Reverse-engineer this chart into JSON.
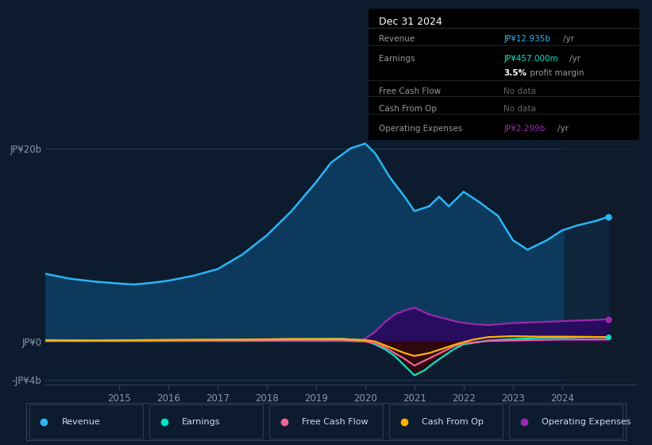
{
  "background_color": "#0d1b2e",
  "plot_bg_color": "#0d1b2e",
  "ylabel_top": "JP¥20b",
  "ylabel_zero": "JP¥0",
  "ylabel_bottom": "-JP¥4b",
  "ylim": [
    -4500000000.0,
    22000000000.0
  ],
  "xlim": [
    2013.5,
    2025.5
  ],
  "xticks": [
    2015,
    2016,
    2017,
    2018,
    2019,
    2020,
    2021,
    2022,
    2023,
    2024
  ],
  "grid_color": "#1e3a5a",
  "revenue_color": "#29b6f6",
  "revenue_fill": "#0d3a5c",
  "earnings_color": "#00e5c9",
  "fcf_color": "#f06292",
  "cashfromop_color": "#ffb300",
  "opex_color": "#9c27b0",
  "opex_fill": "#2a0a5e",
  "revenue_x": [
    2013.5,
    2014.0,
    2014.5,
    2015.0,
    2015.3,
    2015.7,
    2016.0,
    2016.5,
    2017.0,
    2017.5,
    2018.0,
    2018.5,
    2019.0,
    2019.3,
    2019.7,
    2020.0,
    2020.2,
    2020.5,
    2020.8,
    2021.0,
    2021.3,
    2021.5,
    2021.7,
    2022.0,
    2022.3,
    2022.7,
    2023.0,
    2023.3,
    2023.7,
    2024.0,
    2024.3,
    2024.7,
    2024.95
  ],
  "revenue_y": [
    7000000000.0,
    6500000000.0,
    6200000000.0,
    6000000000.0,
    5900000000.0,
    6100000000.0,
    6300000000.0,
    6800000000.0,
    7500000000.0,
    9000000000.0,
    11000000000.0,
    13500000000.0,
    16500000000.0,
    18500000000.0,
    20000000000.0,
    20500000000.0,
    19500000000.0,
    17000000000.0,
    15000000000.0,
    13500000000.0,
    14000000000.0,
    15000000000.0,
    14000000000.0,
    15500000000.0,
    14500000000.0,
    13000000000.0,
    10500000000.0,
    9500000000.0,
    10500000000.0,
    11500000000.0,
    12000000000.0,
    12500000000.0,
    12935000000.0
  ],
  "earnings_x": [
    2013.5,
    2014.5,
    2015.5,
    2016.5,
    2017.5,
    2018.5,
    2019.5,
    2020.0,
    2020.2,
    2020.4,
    2020.6,
    2020.8,
    2021.0,
    2021.2,
    2021.4,
    2021.6,
    2021.8,
    2022.0,
    2022.5,
    2023.0,
    2023.5,
    2024.0,
    2024.5,
    2024.95
  ],
  "earnings_y": [
    150000000.0,
    100000000.0,
    120000000.0,
    150000000.0,
    180000000.0,
    250000000.0,
    280000000.0,
    100000000.0,
    -300000000.0,
    -800000000.0,
    -1500000000.0,
    -2500000000.0,
    -3500000000.0,
    -3000000000.0,
    -2200000000.0,
    -1500000000.0,
    -800000000.0,
    -300000000.0,
    100000000.0,
    250000000.0,
    350000000.0,
    400000000.0,
    450000000.0,
    457000000.0
  ],
  "fcf_x": [
    2013.5,
    2014.5,
    2015.5,
    2016.5,
    2017.5,
    2018.5,
    2019.5,
    2020.0,
    2020.2,
    2020.4,
    2020.6,
    2020.8,
    2021.0,
    2021.2,
    2021.4,
    2021.6,
    2021.8,
    2022.0,
    2022.5,
    2023.0,
    2023.5,
    2024.0,
    2024.5,
    2024.95
  ],
  "fcf_y": [
    50000000.0,
    50000000.0,
    50000000.0,
    80000000.0,
    80000000.0,
    100000000.0,
    100000000.0,
    0.0,
    -200000000.0,
    -600000000.0,
    -1200000000.0,
    -1800000000.0,
    -2500000000.0,
    -2000000000.0,
    -1500000000.0,
    -1000000000.0,
    -500000000.0,
    -200000000.0,
    50000000.0,
    100000000.0,
    150000000.0,
    200000000.0,
    200000000.0,
    200000000.0
  ],
  "cashfromop_x": [
    2013.5,
    2014.5,
    2015.5,
    2016.5,
    2017.5,
    2018.5,
    2019.5,
    2020.0,
    2020.2,
    2020.4,
    2020.6,
    2020.8,
    2021.0,
    2021.3,
    2021.6,
    2021.9,
    2022.2,
    2022.5,
    2023.0,
    2023.5,
    2024.0,
    2024.5,
    2024.95
  ],
  "cashfromop_y": [
    100000000.0,
    100000000.0,
    150000000.0,
    180000000.0,
    200000000.0,
    250000000.0,
    250000000.0,
    150000000.0,
    0.0,
    -400000000.0,
    -800000000.0,
    -1200000000.0,
    -1500000000.0,
    -1200000000.0,
    -700000000.0,
    -200000000.0,
    200000000.0,
    450000000.0,
    550000000.0,
    500000000.0,
    500000000.0,
    480000000.0,
    450000000.0
  ],
  "opex_x": [
    2019.9,
    2020.0,
    2020.2,
    2020.4,
    2020.6,
    2020.8,
    2021.0,
    2021.3,
    2021.6,
    2021.9,
    2022.2,
    2022.5,
    2023.0,
    2023.5,
    2024.0,
    2024.5,
    2024.95
  ],
  "opex_y": [
    0.0,
    300000000.0,
    1000000000.0,
    2000000000.0,
    2800000000.0,
    3200000000.0,
    3500000000.0,
    2800000000.0,
    2400000000.0,
    2000000000.0,
    1800000000.0,
    1700000000.0,
    1900000000.0,
    2000000000.0,
    2100000000.0,
    2200000000.0,
    2299000000.0
  ],
  "info_box": {
    "date": "Dec 31 2024",
    "rows": [
      {
        "label": "Revenue",
        "value": "JP¥12.935b",
        "unit": "/yr",
        "value_color": "#29b6f6"
      },
      {
        "label": "Earnings",
        "value": "JP¥457.000m",
        "unit": "/yr",
        "value_color": "#00e5c9"
      },
      {
        "label": "",
        "value": "3.5%",
        "unit": " profit margin",
        "value_color": "#ffffff",
        "bold": true
      },
      {
        "label": "Free Cash Flow",
        "value": "No data",
        "unit": "",
        "value_color": "#666666"
      },
      {
        "label": "Cash From Op",
        "value": "No data",
        "unit": "",
        "value_color": "#666666"
      },
      {
        "label": "Operating Expenses",
        "value": "JP¥2.299b",
        "unit": "/yr",
        "value_color": "#9c27b0"
      }
    ]
  },
  "legend_items": [
    {
      "label": "Revenue",
      "color": "#29b6f6"
    },
    {
      "label": "Earnings",
      "color": "#00e5c9"
    },
    {
      "label": "Free Cash Flow",
      "color": "#f06292"
    },
    {
      "label": "Cash From Op",
      "color": "#ffb300"
    },
    {
      "label": "Operating Expenses",
      "color": "#9c27b0"
    }
  ]
}
